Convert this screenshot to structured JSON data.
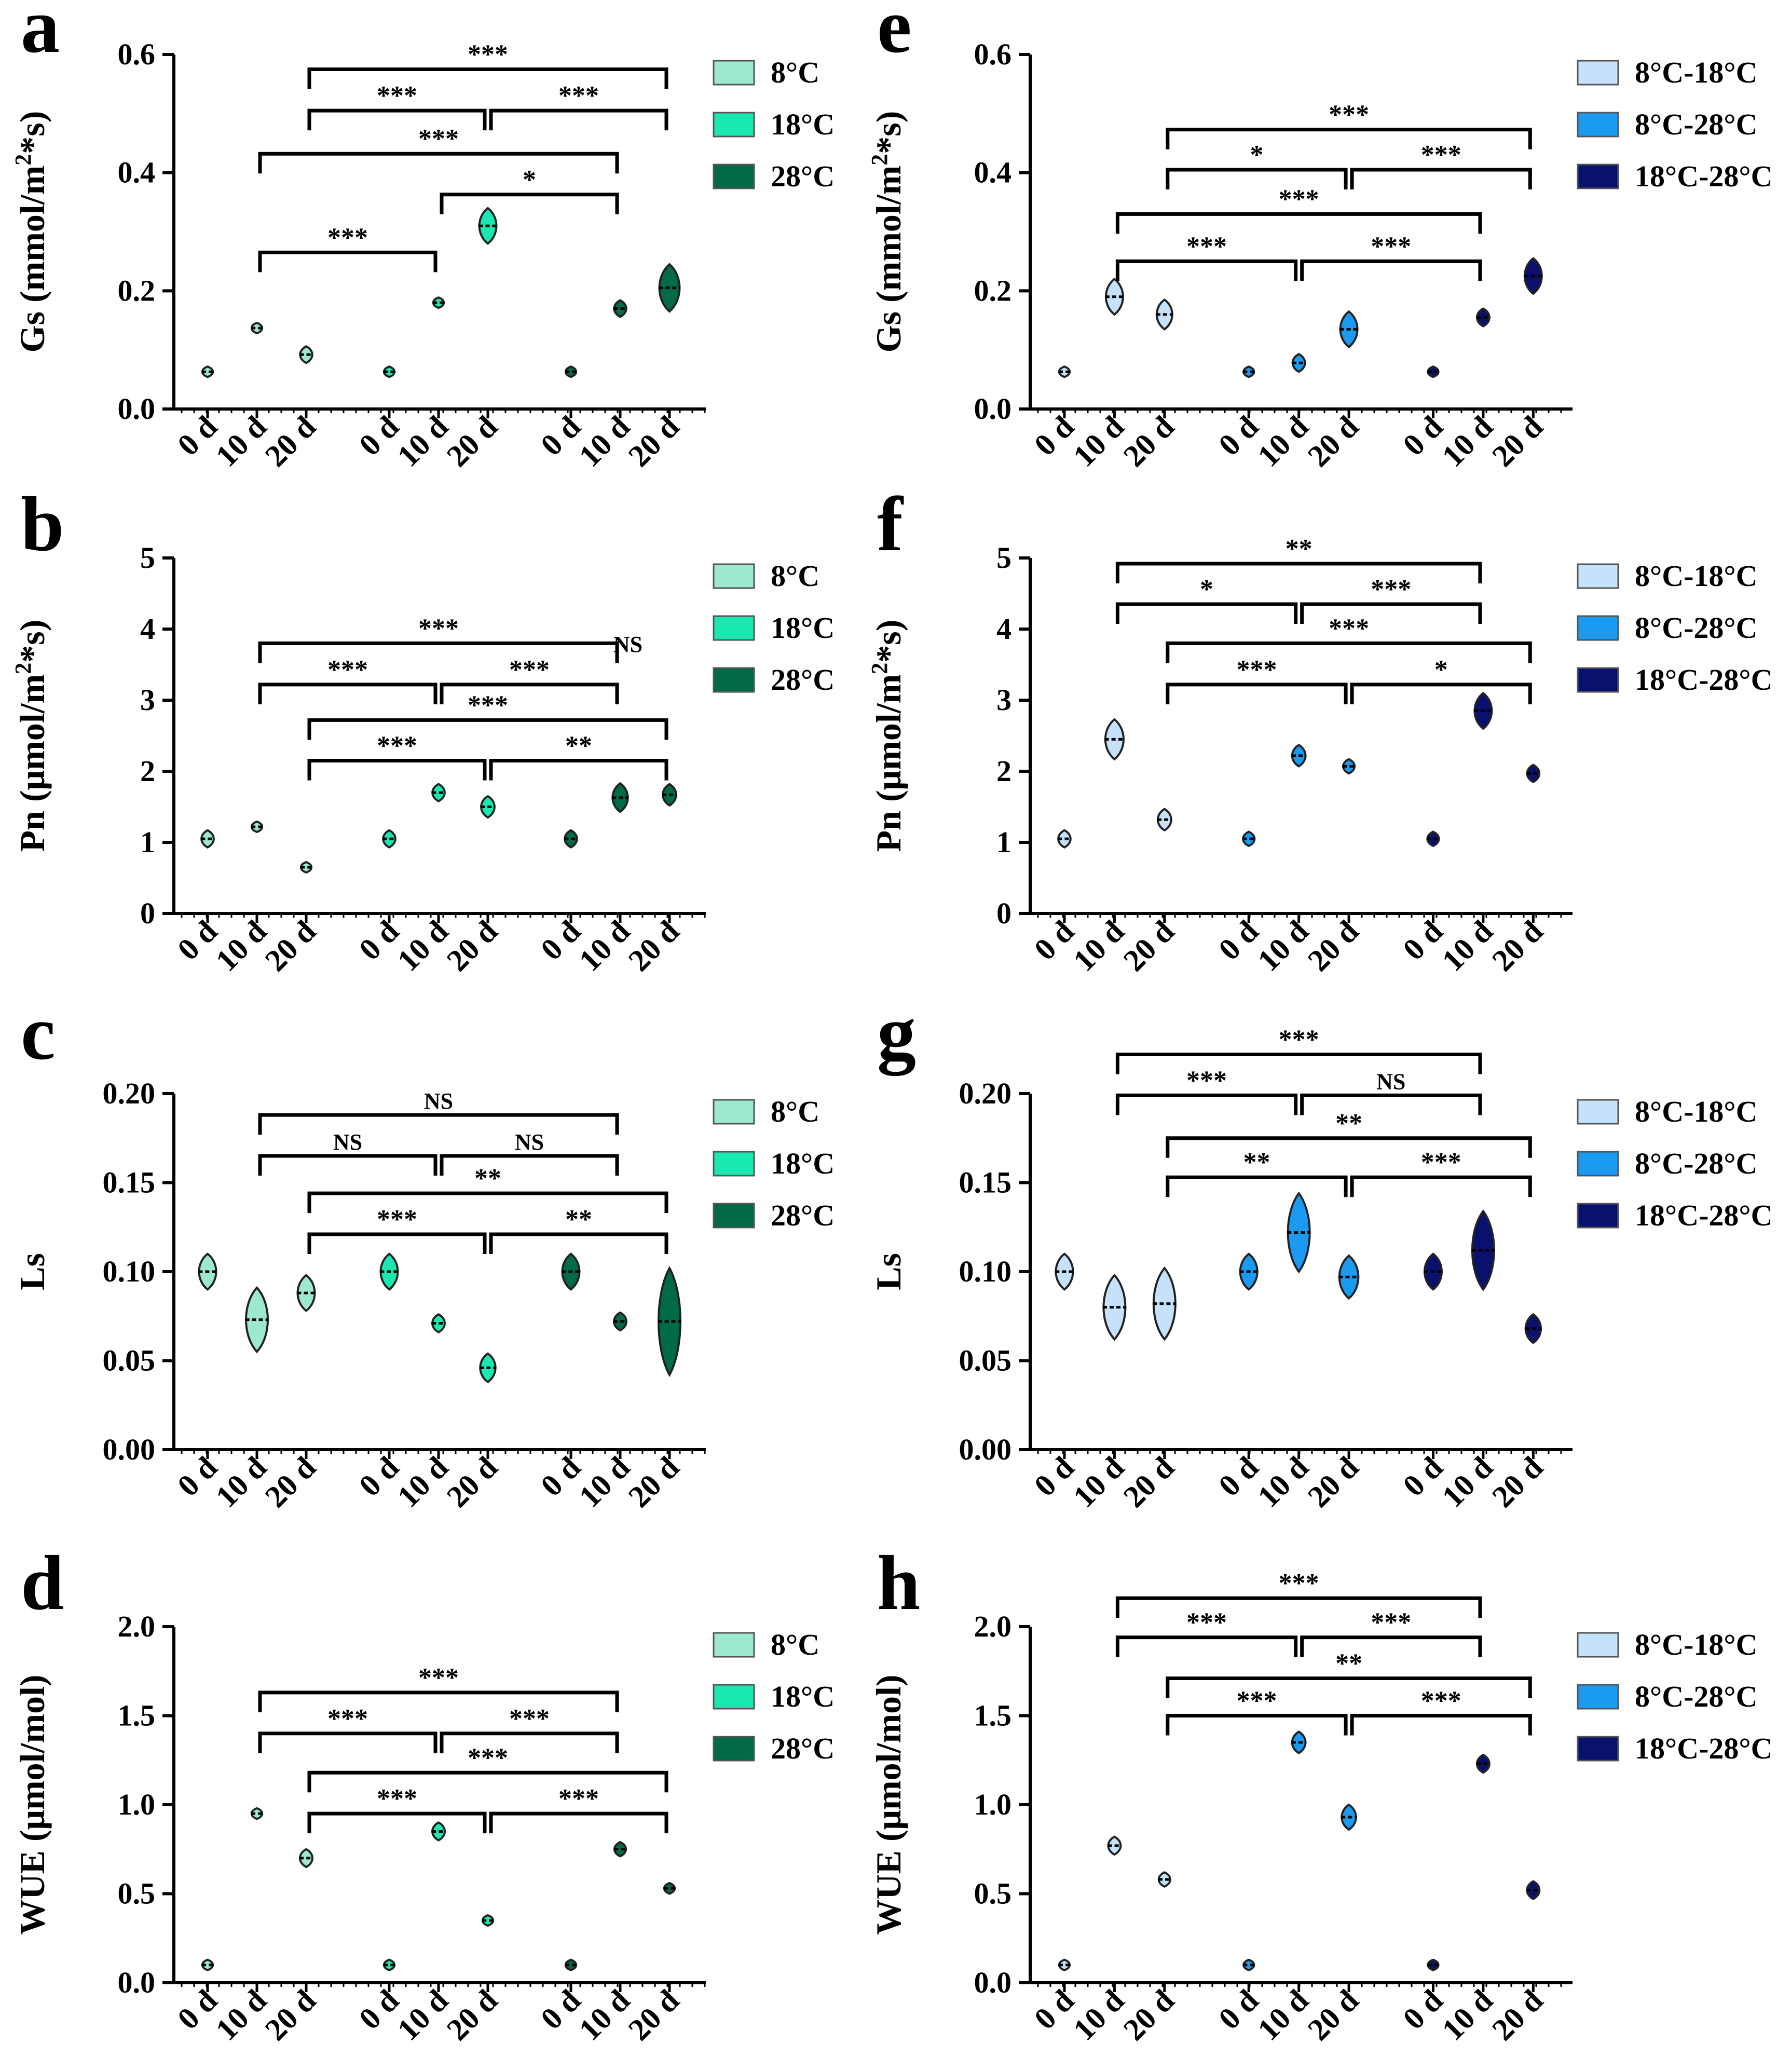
{
  "figure": {
    "categories": [
      "0 d",
      "10 d",
      "20 d",
      "0 d",
      "10 d",
      "20 d",
      "0 d",
      "10 d",
      "20 d"
    ],
    "legend_left": [
      "8°C",
      "18°C",
      "28°C"
    ],
    "legend_right": [
      "8°C-18°C",
      "8°C-28°C",
      "18°C-28°C"
    ],
    "colors_left": [
      "#9de8d0",
      "#1ae8b0",
      "#006b45"
    ],
    "colors_right": [
      "#c6e2fb",
      "#1a9af0",
      "#0a106e"
    ]
  },
  "chart_data": [
    {
      "panel": "a",
      "type": "violin",
      "ylabel": "Gs (mmol/m²*s)",
      "ylabel_base": "Gs (mmol/m",
      "ylabel_sup": "2",
      "ylabel_tail": "*s)",
      "ylim": [
        0,
        0.6
      ],
      "yticks": [
        0.0,
        0.2,
        0.4,
        0.6
      ],
      "tick_labels": [
        "0.0",
        "0.2",
        "0.4",
        "0.6"
      ],
      "legend": "left",
      "series": [
        {
          "name": "8°C",
          "values": [
            0.063,
            0.137,
            0.092
          ]
        },
        {
          "name": "18°C",
          "values": [
            0.063,
            0.18,
            0.31
          ]
        },
        {
          "name": "28°C",
          "values": [
            0.063,
            0.17,
            0.205
          ]
        }
      ],
      "spreads": [
        0.008,
        0.008,
        0.014,
        0.007,
        0.004,
        0.03,
        0.008,
        0.014,
        0.04
      ],
      "brackets": [
        {
          "from": 1,
          "to": 4,
          "y": 0.265,
          "label": "***"
        },
        {
          "from": 4,
          "to": 7,
          "y": 0.363,
          "label": "*"
        },
        {
          "from": 1,
          "to": 7,
          "y": 0.432,
          "label": "***"
        },
        {
          "from": 2,
          "to": 5,
          "y": 0.505,
          "label": "***"
        },
        {
          "from": 5,
          "to": 8,
          "y": 0.505,
          "label": "***"
        },
        {
          "from": 2,
          "to": 8,
          "y": 0.575,
          "label": "***"
        }
      ]
    },
    {
      "panel": "b",
      "type": "violin",
      "ylabel": "Pn (μmol/m²*s)",
      "ylabel_base": "Pn (μmol/m",
      "ylabel_sup": "2",
      "ylabel_tail": "*s)",
      "ylim": [
        0,
        5
      ],
      "yticks": [
        0,
        1,
        2,
        3,
        4,
        5
      ],
      "tick_labels": [
        "0",
        "1",
        "2",
        "3",
        "4",
        "5"
      ],
      "legend": "left",
      "series": [
        {
          "name": "8°C",
          "values": [
            1.05,
            1.22,
            0.65
          ]
        },
        {
          "name": "18°C",
          "values": [
            1.05,
            1.7,
            1.5
          ]
        },
        {
          "name": "28°C",
          "values": [
            1.05,
            1.63,
            1.67
          ]
        }
      ],
      "spreads": [
        0.12,
        0.07,
        0.06,
        0.12,
        0.12,
        0.15,
        0.12,
        0.2,
        0.15
      ],
      "brackets": [
        {
          "from": 2,
          "to": 5,
          "y": 2.15,
          "label": "***"
        },
        {
          "from": 5,
          "to": 8,
          "y": 2.15,
          "label": "**"
        },
        {
          "from": 2,
          "to": 8,
          "y": 2.72,
          "label": "***"
        },
        {
          "from": 1,
          "to": 4,
          "y": 3.22,
          "label": "***"
        },
        {
          "from": 4,
          "to": 7,
          "y": 3.22,
          "label": "***"
        },
        {
          "from": 1,
          "to": 7,
          "y": 3.8,
          "label": "***"
        }
      ],
      "bracket_extra": {
        "index": 4,
        "label": "NS"
      }
    },
    {
      "panel": "c",
      "type": "violin",
      "ylabel": "Ls",
      "ylabel_base": "Ls",
      "ylabel_sup": "",
      "ylabel_tail": "",
      "ylim": [
        0,
        0.2
      ],
      "yticks": [
        0.0,
        0.05,
        0.1,
        0.15,
        0.2
      ],
      "tick_labels": [
        "0.00",
        "0.05",
        "0.10",
        "0.15",
        "0.20"
      ],
      "legend": "left",
      "series": [
        {
          "name": "8°C",
          "values": [
            0.1,
            0.073,
            0.088
          ]
        },
        {
          "name": "18°C",
          "values": [
            0.1,
            0.071,
            0.046
          ]
        },
        {
          "name": "28°C",
          "values": [
            0.1,
            0.072,
            0.072
          ]
        }
      ],
      "spreads": [
        0.01,
        0.018,
        0.01,
        0.01,
        0.005,
        0.008,
        0.01,
        0.005,
        0.03
      ],
      "brackets": [
        {
          "from": 2,
          "to": 5,
          "y": 0.121,
          "label": "***"
        },
        {
          "from": 5,
          "to": 8,
          "y": 0.121,
          "label": "**"
        },
        {
          "from": 2,
          "to": 8,
          "y": 0.144,
          "label": "**"
        },
        {
          "from": 1,
          "to": 4,
          "y": 0.165,
          "label": "NS"
        },
        {
          "from": 4,
          "to": 7,
          "y": 0.165,
          "label": "NS"
        },
        {
          "from": 1,
          "to": 7,
          "y": 0.188,
          "label": "NS"
        }
      ]
    },
    {
      "panel": "d",
      "type": "violin",
      "ylabel": "WUE (μmol/mol)",
      "ylabel_base": "WUE (μmol/mol)",
      "ylabel_sup": "",
      "ylabel_tail": "",
      "ylim": [
        0,
        2.0
      ],
      "yticks": [
        0.0,
        0.5,
        1.0,
        1.5,
        2.0
      ],
      "tick_labels": [
        "0.0",
        "0.5",
        "1.0",
        "1.5",
        "2.0"
      ],
      "legend": "left",
      "series": [
        {
          "name": "8°C",
          "values": [
            0.1,
            0.95,
            0.7
          ]
        },
        {
          "name": "18°C",
          "values": [
            0.1,
            0.85,
            0.35
          ]
        },
        {
          "name": "28°C",
          "values": [
            0.1,
            0.75,
            0.53
          ]
        }
      ],
      "spreads": [
        0.015,
        0.03,
        0.05,
        0.015,
        0.05,
        0.025,
        0.015,
        0.04,
        0.03
      ],
      "brackets": [
        {
          "from": 2,
          "to": 5,
          "y": 0.95,
          "label": "***"
        },
        {
          "from": 5,
          "to": 8,
          "y": 0.95,
          "label": "***"
        },
        {
          "from": 2,
          "to": 8,
          "y": 1.18,
          "label": "***"
        },
        {
          "from": 1,
          "to": 4,
          "y": 1.4,
          "label": "***"
        },
        {
          "from": 4,
          "to": 7,
          "y": 1.4,
          "label": "***"
        },
        {
          "from": 1,
          "to": 7,
          "y": 1.63,
          "label": "***"
        }
      ]
    },
    {
      "panel": "e",
      "type": "violin",
      "ylabel": "Gs (mmol/m²*s)",
      "ylabel_base": "Gs (mmol/m",
      "ylabel_sup": "2",
      "ylabel_tail": "*s)",
      "ylim": [
        0,
        0.6
      ],
      "yticks": [
        0.0,
        0.2,
        0.4,
        0.6
      ],
      "tick_labels": [
        "0.0",
        "0.2",
        "0.4",
        "0.6"
      ],
      "legend": "right",
      "series": [
        {
          "name": "8°C-18°C",
          "values": [
            0.063,
            0.19,
            0.16
          ]
        },
        {
          "name": "8°C-28°C",
          "values": [
            0.063,
            0.078,
            0.135
          ]
        },
        {
          "name": "18°C-28°C",
          "values": [
            0.063,
            0.155,
            0.225
          ]
        }
      ],
      "spreads": [
        0.008,
        0.03,
        0.025,
        0.008,
        0.015,
        0.03,
        0.008,
        0.015,
        0.03
      ],
      "brackets": [
        {
          "from": 1,
          "to": 4,
          "y": 0.25,
          "label": "***"
        },
        {
          "from": 4,
          "to": 7,
          "y": 0.25,
          "label": "***"
        },
        {
          "from": 1,
          "to": 7,
          "y": 0.33,
          "label": "***"
        },
        {
          "from": 2,
          "to": 5,
          "y": 0.405,
          "label": "*"
        },
        {
          "from": 5,
          "to": 8,
          "y": 0.405,
          "label": "***"
        },
        {
          "from": 2,
          "to": 8,
          "y": 0.473,
          "label": "***"
        }
      ]
    },
    {
      "panel": "f",
      "type": "violin",
      "ylabel": "Pn (μmol/m²*s)",
      "ylabel_base": "Pn (μmol/m",
      "ylabel_sup": "2",
      "ylabel_tail": "*s)",
      "ylim": [
        0,
        5
      ],
      "yticks": [
        0,
        1,
        2,
        3,
        4,
        5
      ],
      "tick_labels": [
        "0",
        "1",
        "2",
        "3",
        "4",
        "5"
      ],
      "legend": "right",
      "series": [
        {
          "name": "8°C-18°C",
          "values": [
            1.05,
            2.45,
            1.32
          ]
        },
        {
          "name": "8°C-28°C",
          "values": [
            1.05,
            2.22,
            2.07
          ]
        },
        {
          "name": "18°C-28°C",
          "values": [
            1.05,
            2.85,
            1.97
          ]
        }
      ],
      "spreads": [
        0.12,
        0.28,
        0.15,
        0.1,
        0.15,
        0.1,
        0.1,
        0.25,
        0.12
      ],
      "brackets": [
        {
          "from": 2,
          "to": 5,
          "y": 3.22,
          "label": "***"
        },
        {
          "from": 5,
          "to": 8,
          "y": 3.22,
          "label": "*"
        },
        {
          "from": 2,
          "to": 8,
          "y": 3.8,
          "label": "***"
        },
        {
          "from": 1,
          "to": 4,
          "y": 4.35,
          "label": "*"
        },
        {
          "from": 4,
          "to": 7,
          "y": 4.35,
          "label": "***"
        },
        {
          "from": 1,
          "to": 7,
          "y": 4.92,
          "label": "**"
        }
      ]
    },
    {
      "panel": "g",
      "type": "violin",
      "ylabel": "Ls",
      "ylabel_base": "Ls",
      "ylabel_sup": "",
      "ylabel_tail": "",
      "ylim": [
        0,
        0.2
      ],
      "yticks": [
        0.0,
        0.05,
        0.1,
        0.15,
        0.2
      ],
      "tick_labels": [
        "0.00",
        "0.05",
        "0.10",
        "0.15",
        "0.20"
      ],
      "legend": "right",
      "series": [
        {
          "name": "8°C-18°C",
          "values": [
            0.1,
            0.08,
            0.082
          ]
        },
        {
          "name": "8°C-28°C",
          "values": [
            0.1,
            0.122,
            0.097
          ]
        },
        {
          "name": "18°C-28°C",
          "values": [
            0.1,
            0.112,
            0.068
          ]
        }
      ],
      "spreads": [
        0.01,
        0.018,
        0.02,
        0.01,
        0.022,
        0.012,
        0.01,
        0.022,
        0.008
      ],
      "brackets": [
        {
          "from": 2,
          "to": 5,
          "y": 0.153,
          "label": "**"
        },
        {
          "from": 5,
          "to": 8,
          "y": 0.153,
          "label": "***"
        },
        {
          "from": 2,
          "to": 8,
          "y": 0.175,
          "label": "**"
        },
        {
          "from": 1,
          "to": 4,
          "y": 0.199,
          "label": "***"
        },
        {
          "from": 4,
          "to": 7,
          "y": 0.199,
          "label": "NS"
        },
        {
          "from": 1,
          "to": 7,
          "y": 0.222,
          "label": "***"
        }
      ]
    },
    {
      "panel": "h",
      "type": "violin",
      "ylabel": "WUE (μmol/mol)",
      "ylabel_base": "WUE (μmol/mol)",
      "ylabel_sup": "",
      "ylabel_tail": "",
      "ylim": [
        0,
        2.0
      ],
      "yticks": [
        0.0,
        0.5,
        1.0,
        1.5,
        2.0
      ],
      "tick_labels": [
        "0.0",
        "0.5",
        "1.0",
        "1.5",
        "2.0"
      ],
      "legend": "right",
      "series": [
        {
          "name": "8°C-18°C",
          "values": [
            0.1,
            0.77,
            0.58
          ]
        },
        {
          "name": "8°C-28°C",
          "values": [
            0.1,
            1.35,
            0.93
          ]
        },
        {
          "name": "18°C-28°C",
          "values": [
            0.1,
            1.23,
            0.52
          ]
        }
      ],
      "spreads": [
        0.015,
        0.05,
        0.04,
        0.015,
        0.06,
        0.07,
        0.015,
        0.05,
        0.05
      ],
      "brackets": [
        {
          "from": 2,
          "to": 5,
          "y": 1.5,
          "label": "***"
        },
        {
          "from": 5,
          "to": 8,
          "y": 1.5,
          "label": "***"
        },
        {
          "from": 2,
          "to": 8,
          "y": 1.71,
          "label": "**"
        },
        {
          "from": 1,
          "to": 4,
          "y": 1.94,
          "label": "***"
        },
        {
          "from": 4,
          "to": 7,
          "y": 1.94,
          "label": "***"
        },
        {
          "from": 1,
          "to": 7,
          "y": 2.16,
          "label": "***"
        }
      ]
    }
  ]
}
